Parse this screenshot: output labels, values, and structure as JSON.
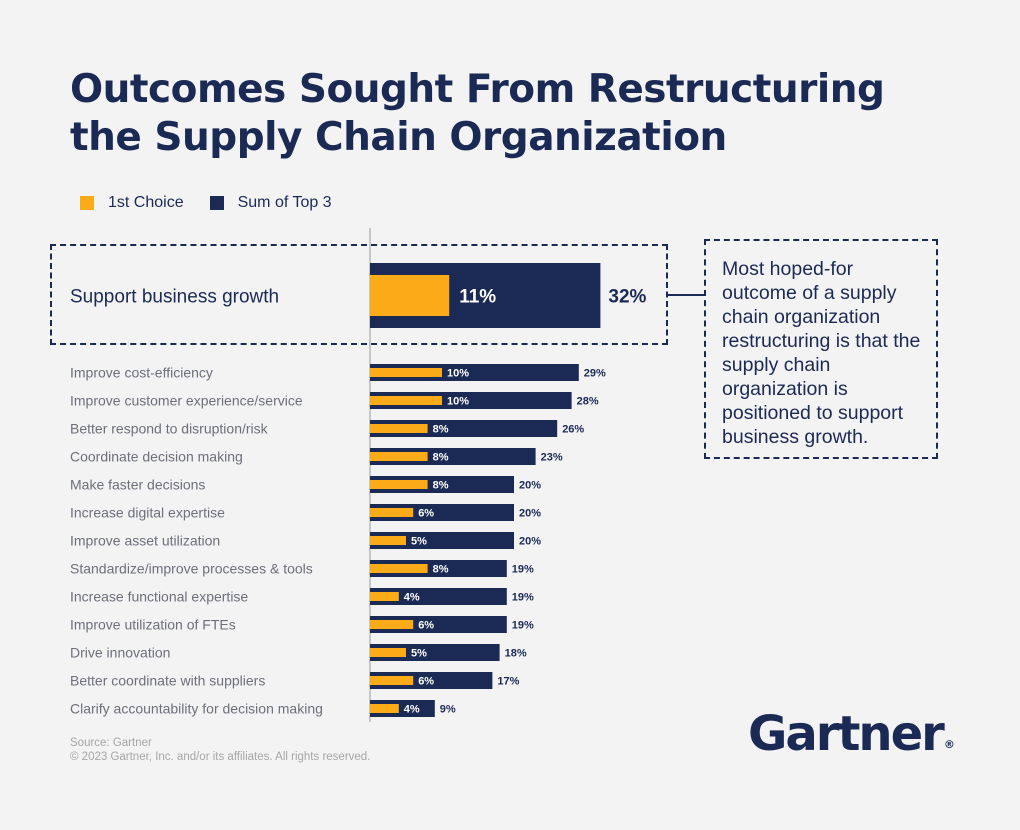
{
  "title": {
    "line1": "Outcomes Sought From Restructuring",
    "line2": "the Supply Chain Organization"
  },
  "legend": [
    {
      "label": "1st Choice",
      "color": "#fbab18"
    },
    {
      "label": "Sum of Top 3",
      "color": "#1b2a55"
    }
  ],
  "callout": {
    "text": "Most hoped-for outcome of a supply chain organization restructuring is that the supply chain organization is positioned to support business growth."
  },
  "footer": {
    "source": "Source: Gartner",
    "copyright": "© 2023 Gartner, Inc. and/or its affiliates. All rights reserved."
  },
  "logo": {
    "text": "Gartner",
    "mark": "®"
  },
  "chart_data": {
    "type": "bar",
    "orientation": "horizontal",
    "categories": [
      "Support business growth",
      "Improve cost-efficiency",
      "Improve customer experience/service",
      "Better respond to disruption/risk",
      "Coordinate decision making",
      "Make faster decisions",
      "Increase digital expertise",
      "Improve asset utilization",
      "Standardize/improve processes & tools",
      "Increase functional expertise",
      "Improve utilization of FTEs",
      "Drive innovation",
      "Better coordinate with suppliers",
      "Clarify accountability for decision making"
    ],
    "series": [
      {
        "name": "Sum of Top 3",
        "color": "#1b2a55",
        "values": [
          32,
          29,
          28,
          26,
          23,
          20,
          20,
          20,
          19,
          19,
          19,
          18,
          17,
          9
        ]
      },
      {
        "name": "1st Choice",
        "color": "#fbab18",
        "values": [
          11,
          10,
          10,
          8,
          8,
          8,
          6,
          5,
          8,
          4,
          6,
          5,
          6,
          4
        ]
      }
    ],
    "value_suffix": "%",
    "highlighted_category": "Support business growth"
  }
}
